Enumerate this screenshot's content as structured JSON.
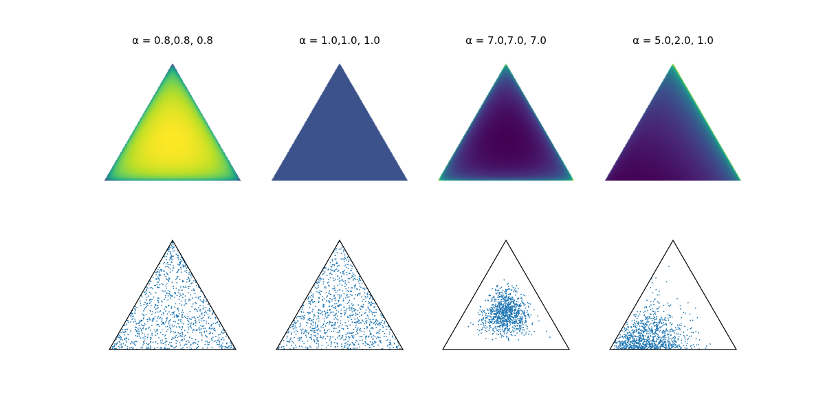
{
  "chart_data": [
    {
      "type": "heatmap",
      "title": "α = 0.8,0.8, 0.8",
      "alpha": [
        0.8,
        0.8,
        0.8
      ],
      "plot": "density",
      "colormap": "viridis"
    },
    {
      "type": "heatmap",
      "title": "α = 1.0,1.0, 1.0",
      "alpha": [
        1.0,
        1.0,
        1.0
      ],
      "plot": "density",
      "colormap": "viridis"
    },
    {
      "type": "heatmap",
      "title": "α = 7.0,7.0, 7.0",
      "alpha": [
        7.0,
        7.0,
        7.0
      ],
      "plot": "density",
      "colormap": "viridis"
    },
    {
      "type": "heatmap",
      "title": "α = 5.0,2.0, 1.0",
      "alpha": [
        5.0,
        2.0,
        1.0
      ],
      "plot": "density",
      "colormap": "viridis"
    },
    {
      "type": "scatter",
      "title": "",
      "alpha": [
        0.8,
        0.8,
        0.8
      ],
      "plot": "samples",
      "color": "#1f77b4"
    },
    {
      "type": "scatter",
      "title": "",
      "alpha": [
        1.0,
        1.0,
        1.0
      ],
      "plot": "samples",
      "color": "#1f77b4"
    },
    {
      "type": "scatter",
      "title": "",
      "alpha": [
        7.0,
        7.0,
        7.0
      ],
      "plot": "samples",
      "color": "#1f77b4"
    },
    {
      "type": "scatter",
      "title": "",
      "alpha": [
        5.0,
        2.0,
        1.0
      ],
      "plot": "samples",
      "color": "#1f77b4"
    }
  ],
  "titles": [
    "α = 0.8,0.8, 0.8",
    "α = 1.0,1.0, 1.0",
    "α = 7.0,7.0, 7.0",
    "α = 5.0,2.0, 1.0"
  ],
  "colors": {
    "marker": "#1f77b4",
    "outline": "#000000",
    "uniform_fill": "#3b528b"
  }
}
